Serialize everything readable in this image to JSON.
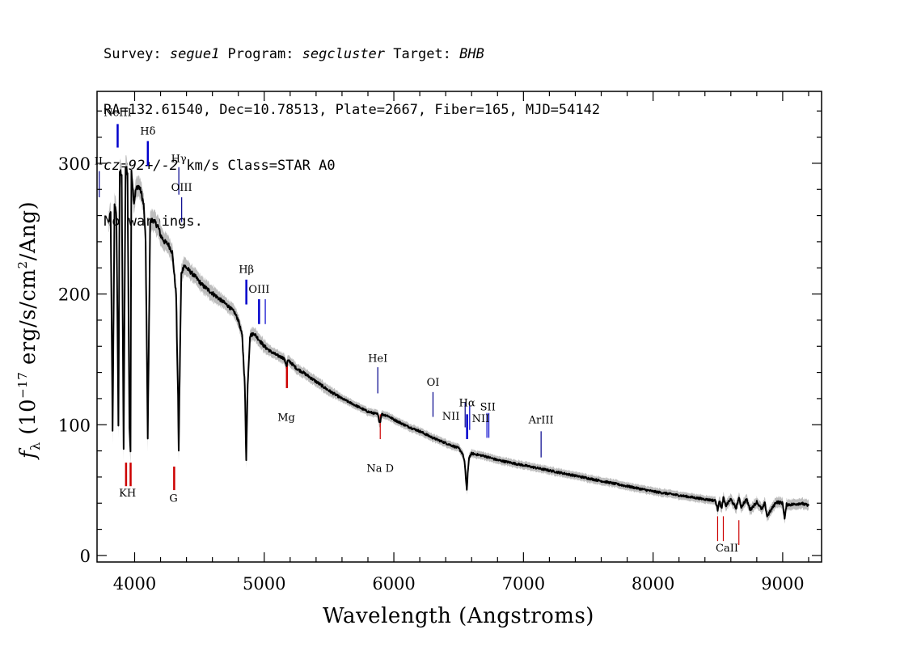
{
  "header": {
    "line1": {
      "survey_label": "Survey: ",
      "survey": "segue1",
      "program_label": " Program: ",
      "program": "segcluster",
      "target_label": " Target: ",
      "target": "BHB"
    },
    "line2": "RA=132.61540, Dec=10.78513, Plate=2667, Fiber=165, MJD=54142",
    "line3": {
      "cz": "cz=92+/-2",
      "rest": " km/s Class=STAR A0"
    },
    "line4": "No warnings."
  },
  "chart_data": {
    "type": "line",
    "xlabel": "Wavelength (Angstroms)",
    "ylabel": "f_λ (10^-17 erg/s/cm^2/Ang)",
    "xlim": [
      3710,
      9300
    ],
    "ylim": [
      -5,
      355
    ],
    "xticks": [
      4000,
      5000,
      6000,
      7000,
      8000,
      9000
    ],
    "yticks": [
      0,
      100,
      200,
      300
    ],
    "grid": false,
    "colors": {
      "spectrum": "#000000",
      "error_band": "#bdbdbd",
      "emission": "#0000cc",
      "absorption": "#cc0000"
    },
    "series": [
      {
        "x": [
          3800,
          3815,
          3830,
          3845,
          3860,
          3875,
          3885,
          3900,
          3915,
          3930,
          3945,
          3960,
          3968,
          3975,
          3985,
          3995,
          4010,
          4030,
          4050,
          4070,
          4085,
          4095,
          4101,
          4108,
          4120,
          4140,
          4160,
          4180,
          4200,
          4230,
          4260,
          4290,
          4320,
          4335,
          4340,
          4345,
          4360,
          4380,
          4420,
          4470,
          4520,
          4570,
          4620,
          4670,
          4720,
          4770,
          4800,
          4830,
          4850,
          4861,
          4872,
          4890,
          4920,
          4960,
          5000,
          5050,
          5100,
          5150,
          5167,
          5173,
          5180,
          5200,
          5250,
          5300,
          5400,
          5500,
          5600,
          5700,
          5800,
          5875,
          5890,
          5896,
          5905,
          5950,
          6000,
          6100,
          6200,
          6300,
          6400,
          6500,
          6530,
          6545,
          6555,
          6563,
          6570,
          6580,
          6600,
          6700,
          6800,
          7000,
          7200,
          7400,
          7600,
          7800,
          8000,
          8200,
          8400,
          8480,
          8498,
          8510,
          8530,
          8542,
          8560,
          8600,
          8640,
          8662,
          8680,
          8720,
          8750,
          8800,
          8840,
          8862,
          8880,
          8950,
          9000,
          9015,
          9030,
          9080,
          9140,
          9200
        ],
        "y": [
          255,
          262,
          94,
          270,
          258,
          100,
          294,
          292,
          80,
          298,
          292,
          99,
          80,
          295,
          283,
          270,
          280,
          283,
          278,
          268,
          240,
          150,
          89,
          150,
          255,
          257,
          254,
          252,
          245,
          240,
          238,
          232,
          200,
          120,
          79,
          120,
          215,
          222,
          218,
          213,
          207,
          203,
          199,
          195,
          191,
          186,
          180,
          168,
          130,
          74,
          130,
          168,
          170,
          165,
          160,
          156,
          153,
          151,
          147,
          145,
          149,
          148,
          143,
          140,
          133,
          126,
          120,
          115,
          110,
          108,
          102,
          103,
          108,
          107,
          104,
          99,
          95,
          90,
          86,
          82,
          78,
          72,
          60,
          50,
          62,
          75,
          78,
          76,
          73,
          69,
          65,
          61,
          57,
          53,
          49,
          46,
          43,
          42,
          35,
          42,
          36,
          44,
          38,
          43,
          36,
          44,
          37,
          43,
          35,
          41,
          35,
          40,
          30,
          41,
          40,
          28,
          39,
          39,
          40,
          38
        ],
        "error": [
          8,
          8,
          10,
          9,
          9,
          10,
          9,
          9,
          10,
          9,
          9,
          10,
          10,
          9,
          9,
          8,
          8,
          8,
          8,
          8,
          9,
          9,
          10,
          9,
          8,
          8,
          8,
          8,
          8,
          7,
          7,
          7,
          7,
          9,
          9,
          8,
          7,
          7,
          6,
          6,
          6,
          6,
          6,
          5,
          5,
          5,
          5,
          5,
          6,
          6,
          6,
          5,
          5,
          5,
          5,
          4,
          4,
          4,
          4,
          4,
          4,
          4,
          4,
          4,
          4,
          4,
          3,
          3,
          3,
          3,
          4,
          4,
          3,
          3,
          3,
          3,
          3,
          3,
          3,
          3,
          3,
          3,
          4,
          4,
          4,
          3,
          3,
          3,
          3,
          3,
          3,
          3,
          3,
          3,
          3,
          3,
          3,
          3,
          4,
          4,
          4,
          4,
          4,
          4,
          4,
          4,
          4,
          4,
          4,
          4,
          4,
          4,
          4,
          4,
          4,
          4,
          4,
          4,
          4,
          4
        ]
      }
    ],
    "line_marks": [
      {
        "label": "NeIII",
        "wave": 3869,
        "y1": 312,
        "y2": 330,
        "color": "#0000cc",
        "width": 2.5,
        "label_y": 336
      },
      {
        "label": "Hδ",
        "wave": 4102,
        "y1": 298,
        "y2": 317,
        "color": "#0000cc",
        "width": 2.5,
        "label_y": 322
      },
      {
        "label": "Hγ",
        "wave": 4341,
        "y1": 276,
        "y2": 297,
        "color": "#00008b",
        "width": 1.2,
        "label_y": 301
      },
      {
        "label": "OIII",
        "wave": 4363,
        "y1": 255,
        "y2": 274,
        "color": "#00008b",
        "width": 1.2,
        "label_y": 279
      },
      {
        "label": "Hβ",
        "wave": 4862,
        "y1": 192,
        "y2": 211,
        "color": "#0000cc",
        "width": 2.5,
        "label_y": 216
      },
      {
        "label": "OIII",
        "wave": 4960,
        "y1": 177,
        "y2": 196,
        "color": "#0000cc",
        "width": 2.5,
        "label_y": 201
      },
      {
        "label": "",
        "wave": 5008,
        "y1": 177,
        "y2": 196,
        "color": "#0000cc",
        "width": 1.2,
        "label_y": 0
      },
      {
        "label": "HeI",
        "wave": 5876,
        "y1": 124,
        "y2": 144,
        "color": "#00008b",
        "width": 1.2,
        "label_y": 148
      },
      {
        "label": "OI",
        "wave": 6302,
        "y1": 106,
        "y2": 125,
        "color": "#00008b",
        "width": 1.2,
        "label_y": 130
      },
      {
        "label": "NII",
        "wave": 6550,
        "y1": 98,
        "y2": 117,
        "color": "#00008b",
        "width": 1.2,
        "label_y": 0
      },
      {
        "label": "Hα",
        "wave": 6565,
        "y1": 89,
        "y2": 108,
        "color": "#0000cc",
        "width": 2.5,
        "label_y": 114
      },
      {
        "label": "NII",
        "wave": 6585,
        "y1": 96,
        "y2": 115,
        "color": "#0000cc",
        "width": 1.2,
        "label_y": 0
      },
      {
        "label": "SII",
        "wave": 6718,
        "y1": 90,
        "y2": 109,
        "color": "#0000cc",
        "width": 1.2,
        "label_y": 0
      },
      {
        "label": "",
        "wave": 6733,
        "y1": 90,
        "y2": 109,
        "color": "#0000cc",
        "width": 1.2,
        "label_y": 0
      },
      {
        "label": "ArIII",
        "wave": 7136,
        "y1": 75,
        "y2": 95,
        "color": "#00008b",
        "width": 1.2,
        "label_y": 101
      },
      {
        "label": "",
        "wave": 3727,
        "y1": 274,
        "y2": 294,
        "color": "#00008b",
        "width": 1.2,
        "label_y": 0
      },
      {
        "label": "Mg",
        "wave": 5175,
        "y1": 128,
        "y2": 147,
        "color": "#cc0000",
        "width": 2.5,
        "label_y": 0
      },
      {
        "label": "",
        "wave": 5895,
        "y1": 89,
        "y2": 108,
        "color": "#cc0000",
        "width": 1.2,
        "label_y": 0
      },
      {
        "label": "",
        "wave": 3934,
        "y1": 53,
        "y2": 71,
        "color": "#cc0000",
        "width": 2.5,
        "label_y": 0
      },
      {
        "label": "",
        "wave": 3969,
        "y1": 53,
        "y2": 71,
        "color": "#cc0000",
        "width": 2.5,
        "label_y": 0
      },
      {
        "label": "G",
        "wave": 4305,
        "y1": 50,
        "y2": 68,
        "color": "#cc0000",
        "width": 2.5,
        "label_y": 0
      },
      {
        "label": "",
        "wave": 8498,
        "y1": 11,
        "y2": 30,
        "color": "#cc0000",
        "width": 1.2,
        "label_y": 0
      },
      {
        "label": "",
        "wave": 8542,
        "y1": 11,
        "y2": 30,
        "color": "#cc0000",
        "width": 1.2,
        "label_y": 0
      },
      {
        "label": "",
        "wave": 8662,
        "y1": 8,
        "y2": 27,
        "color": "#cc0000",
        "width": 1.2,
        "label_y": 0
      }
    ],
    "extra_labels": [
      {
        "text": "II",
        "wave": 3722,
        "y": 299
      },
      {
        "text": "NII",
        "wave": 6440,
        "y": 104
      },
      {
        "text": "NII",
        "wave": 6670,
        "y": 102
      },
      {
        "text": "SII",
        "wave": 6725,
        "y": 111
      },
      {
        "text": "Mg",
        "wave": 5170,
        "y": 103
      },
      {
        "text": "Na D",
        "wave": 5895,
        "y": 64
      },
      {
        "text": "KH",
        "wave": 3945,
        "y": 45
      },
      {
        "text": "G",
        "wave": 4300,
        "y": 41
      },
      {
        "text": "CaII",
        "wave": 8570,
        "y": 3
      }
    ]
  }
}
